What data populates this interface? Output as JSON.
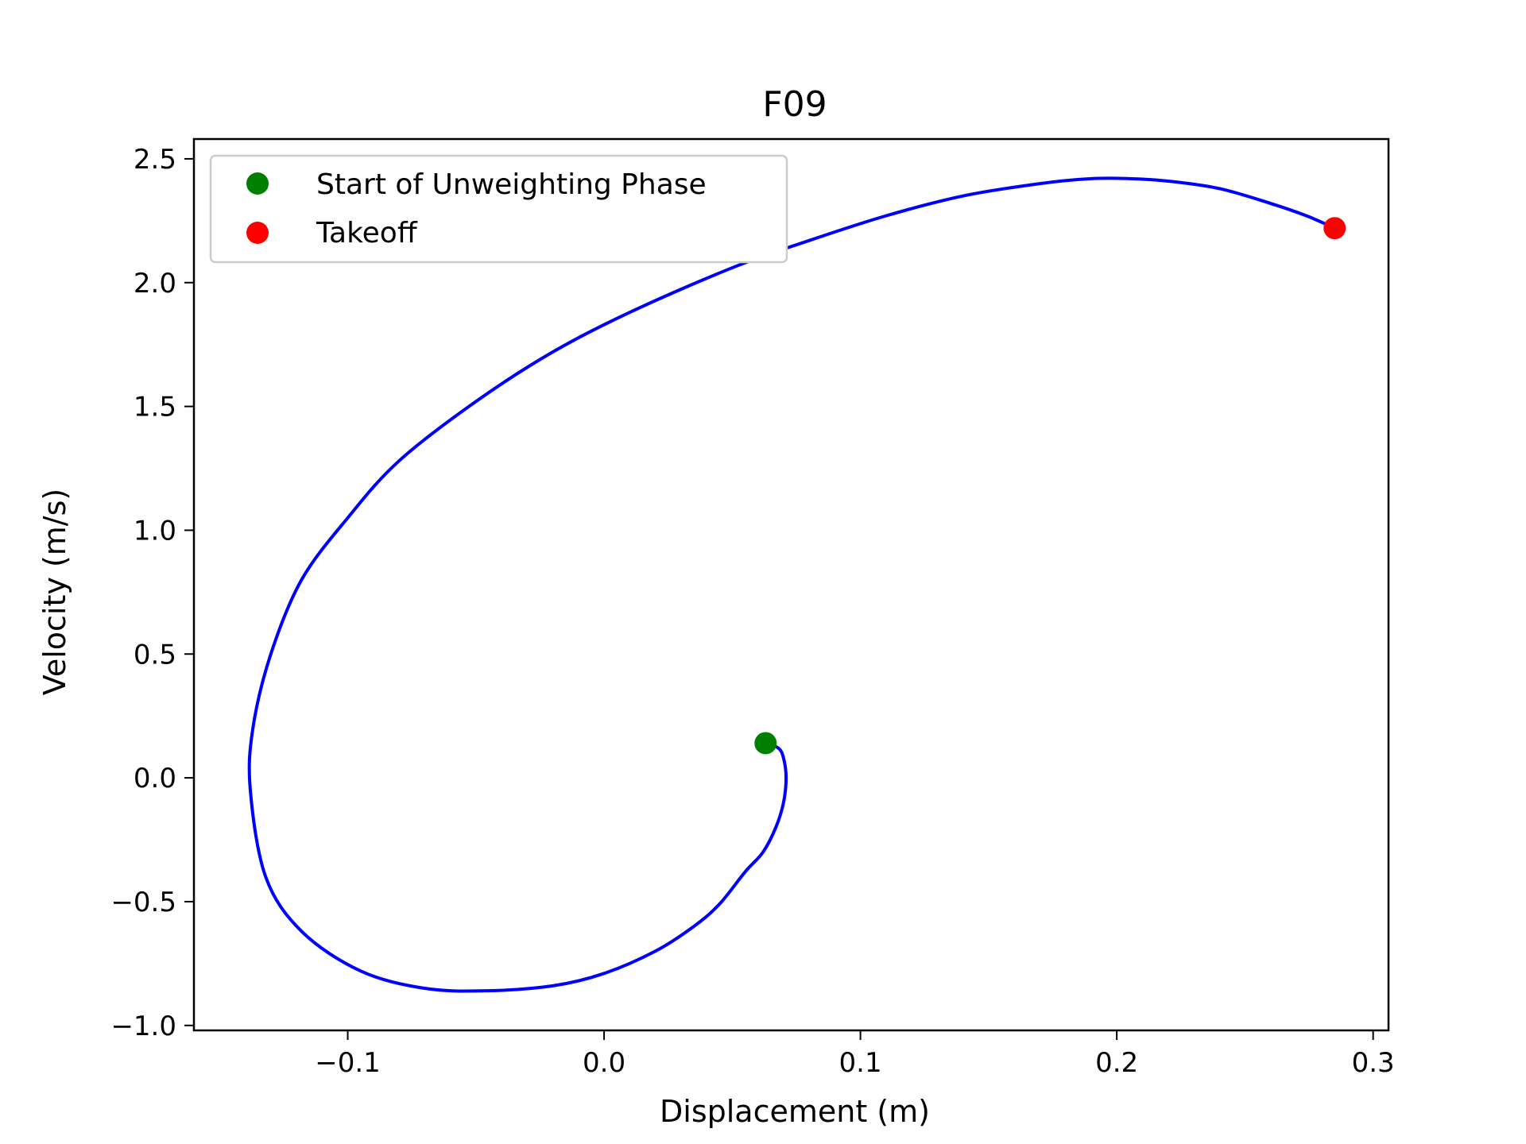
{
  "chart_data": {
    "type": "line",
    "title": "F09",
    "xlabel": "Displacement (m)",
    "ylabel": "Velocity (m/s)",
    "xlim": [
      -0.16,
      0.306
    ],
    "ylim": [
      -1.02,
      2.58
    ],
    "xticks": [
      -0.1,
      0.0,
      0.1,
      0.2,
      0.3
    ],
    "xtick_labels": [
      "−0.1",
      "0.0",
      "0.1",
      "0.2",
      "0.3"
    ],
    "yticks": [
      -1.0,
      -0.5,
      0.0,
      0.5,
      1.0,
      1.5,
      2.0,
      2.5
    ],
    "ytick_labels": [
      "−1.0",
      "−0.5",
      "0.0",
      "0.5",
      "1.0",
      "1.5",
      "2.0",
      "2.5"
    ],
    "grid": false,
    "legend_position": "upper-left",
    "series": [
      {
        "color": "#0000ff",
        "x": [
          0.063,
          0.068,
          0.07,
          0.071,
          0.07,
          0.067,
          0.062,
          0.055,
          0.045,
          0.035,
          0.02,
          0.0,
          -0.02,
          -0.046,
          -0.07,
          -0.095,
          -0.118,
          -0.132,
          -0.138,
          -0.137,
          -0.13,
          -0.118,
          -0.1,
          -0.08,
          -0.05,
          -0.02,
          0.01,
          0.05,
          0.08,
          0.11,
          0.14,
          0.17,
          0.19,
          0.205,
          0.22,
          0.24,
          0.26,
          0.274,
          0.285
        ],
        "y": [
          0.14,
          0.12,
          0.08,
          0.0,
          -0.1,
          -0.2,
          -0.3,
          -0.38,
          -0.51,
          -0.6,
          -0.7,
          -0.79,
          -0.84,
          -0.86,
          -0.85,
          -0.78,
          -0.62,
          -0.4,
          -0.05,
          0.2,
          0.5,
          0.8,
          1.05,
          1.28,
          1.52,
          1.72,
          1.88,
          2.06,
          2.17,
          2.27,
          2.35,
          2.4,
          2.42,
          2.42,
          2.41,
          2.38,
          2.32,
          2.27,
          2.22
        ]
      }
    ],
    "points": [
      {
        "name": "Start of Unweighting Phase",
        "x": 0.063,
        "y": 0.14,
        "color": "#008000"
      },
      {
        "name": "Takeoff",
        "x": 0.285,
        "y": 2.22,
        "color": "#ff0000"
      }
    ]
  }
}
